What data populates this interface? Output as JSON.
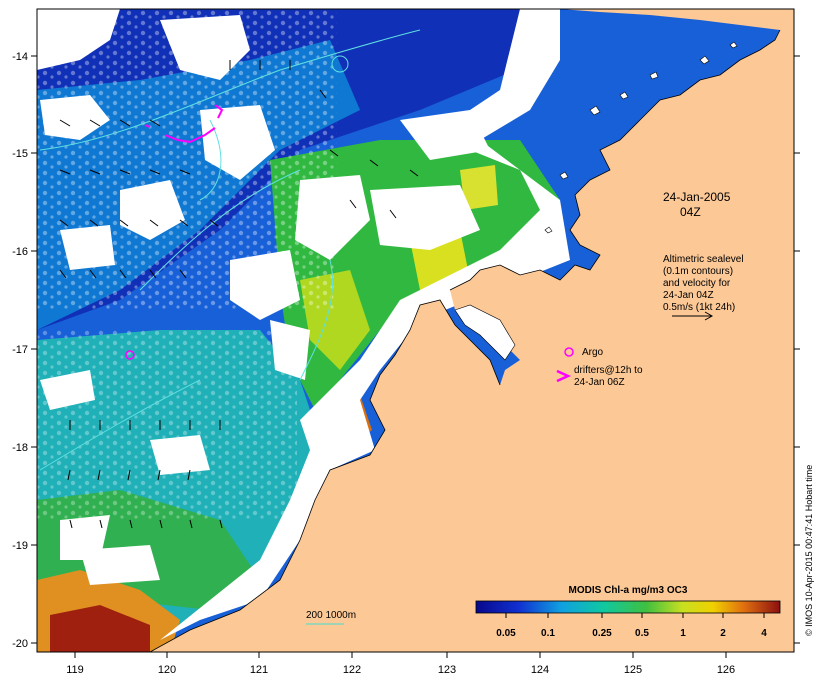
{
  "map": {
    "date_line1": "24-Jan-2005",
    "date_line2": "04Z",
    "altimetry_note": [
      "Altimetric sealevel",
      "(0.1m contours)",
      "and velocity for",
      "24-Jan 04Z",
      "0.5m/s (1kt 24h)"
    ],
    "argo_label": "Argo",
    "drifters_label": [
      "drifters@12h to",
      "24-Jan 06Z"
    ],
    "isobath_label": "200  1000m",
    "credit": "© IMOS 10-Apr-2015 00:47:41 Hobart time",
    "x_ticks": [
      "119",
      "120",
      "121",
      "122",
      "123",
      "124",
      "125",
      "126"
    ],
    "y_ticks": [
      "-14",
      "-15",
      "-16",
      "-17",
      "-18",
      "-19",
      "-20"
    ],
    "colors": {
      "land": "#fcc896",
      "cloud": "#ffffff",
      "drifter": "#ff00ff",
      "isobath": "#40e0d0"
    }
  },
  "colorbar": {
    "title": "MODIS Chl-a mg/m3 OC3",
    "ticks": [
      "0.05",
      "0.1",
      "0.25",
      "0.5",
      "1",
      "2",
      "4"
    ]
  }
}
